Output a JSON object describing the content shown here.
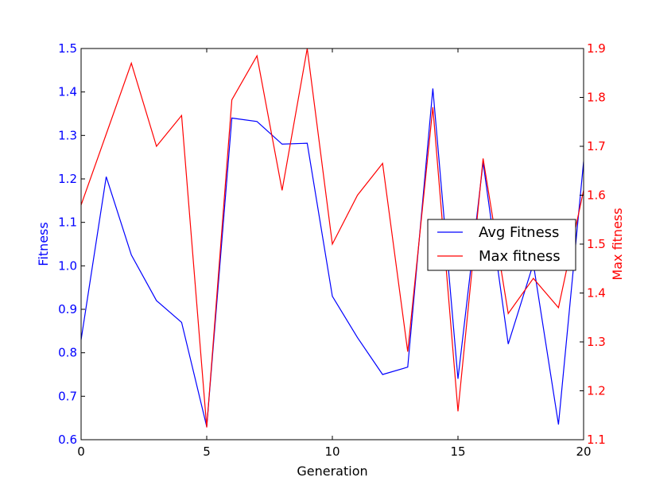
{
  "chart_data": {
    "type": "line",
    "x": [
      0,
      1,
      2,
      3,
      4,
      5,
      6,
      7,
      8,
      9,
      10,
      11,
      12,
      13,
      14,
      15,
      16,
      17,
      18,
      19,
      20
    ],
    "xlabel": "Generation",
    "xlim": [
      0,
      20
    ],
    "xticks": [
      0,
      5,
      10,
      15,
      20
    ],
    "series": [
      {
        "name": "Avg Fitness",
        "axis": "left",
        "color": "#0000ff",
        "values": [
          0.83,
          1.205,
          1.025,
          0.92,
          0.87,
          0.63,
          1.34,
          1.332,
          1.28,
          1.282,
          0.93,
          0.835,
          0.75,
          0.767,
          1.408,
          0.74,
          1.238,
          0.82,
          1.005,
          0.635,
          1.24
        ]
      },
      {
        "name": "Max fitness",
        "axis": "right",
        "color": "#ff0000",
        "values": [
          1.58,
          1.725,
          1.87,
          1.7,
          1.763,
          1.125,
          1.795,
          1.885,
          1.61,
          1.9,
          1.5,
          1.6,
          1.665,
          1.28,
          1.78,
          1.158,
          1.675,
          1.358,
          1.43,
          1.37,
          1.61
        ]
      }
    ],
    "y_left": {
      "label": "Fitness",
      "color": "#0000ff",
      "ylim": [
        0.6,
        1.5
      ],
      "ticks": [
        "0.6",
        "0.7",
        "0.8",
        "0.9",
        "1.0",
        "1.1",
        "1.2",
        "1.3",
        "1.4",
        "1.5"
      ]
    },
    "y_right": {
      "label": "Max fitness",
      "color": "#ff0000",
      "ylim": [
        1.1,
        1.9
      ],
      "ticks": [
        "1.1",
        "1.2",
        "1.3",
        "1.4",
        "1.5",
        "1.6",
        "1.7",
        "1.8",
        "1.9"
      ]
    },
    "legend": {
      "placement": "center-right",
      "entries": [
        "Avg Fitness",
        "Max fitness"
      ]
    },
    "grid": false
  }
}
